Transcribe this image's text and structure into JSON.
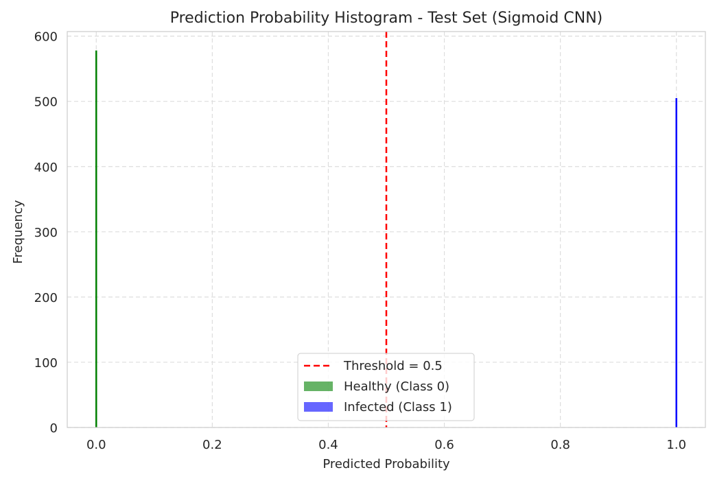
{
  "chart_data": {
    "type": "bar",
    "title": "Prediction Probability Histogram - Test Set (Sigmoid CNN)",
    "xlabel": "Predicted Probability",
    "ylabel": "Frequency",
    "xlim": [
      -0.05,
      1.05
    ],
    "ylim": [
      0,
      607
    ],
    "xticks": [
      0.0,
      0.2,
      0.4,
      0.6,
      0.8,
      1.0
    ],
    "xtick_labels": [
      "0.0",
      "0.2",
      "0.4",
      "0.6",
      "0.8",
      "1.0"
    ],
    "yticks": [
      0,
      100,
      200,
      300,
      400,
      500,
      600
    ],
    "ytick_labels": [
      "0",
      "100",
      "200",
      "300",
      "400",
      "500",
      "600"
    ],
    "grid": true,
    "legend_position": "lower-center",
    "threshold": {
      "value": 0.5,
      "label": "Threshold = 0.5",
      "color": "#ff0000"
    },
    "series": [
      {
        "name": "Healthy (Class 0)",
        "color": "#008000",
        "x": [
          0.0
        ],
        "values": [
          578
        ]
      },
      {
        "name": "Infected (Class 1)",
        "color": "#0000ff",
        "x": [
          1.0
        ],
        "values": [
          505
        ]
      }
    ]
  }
}
